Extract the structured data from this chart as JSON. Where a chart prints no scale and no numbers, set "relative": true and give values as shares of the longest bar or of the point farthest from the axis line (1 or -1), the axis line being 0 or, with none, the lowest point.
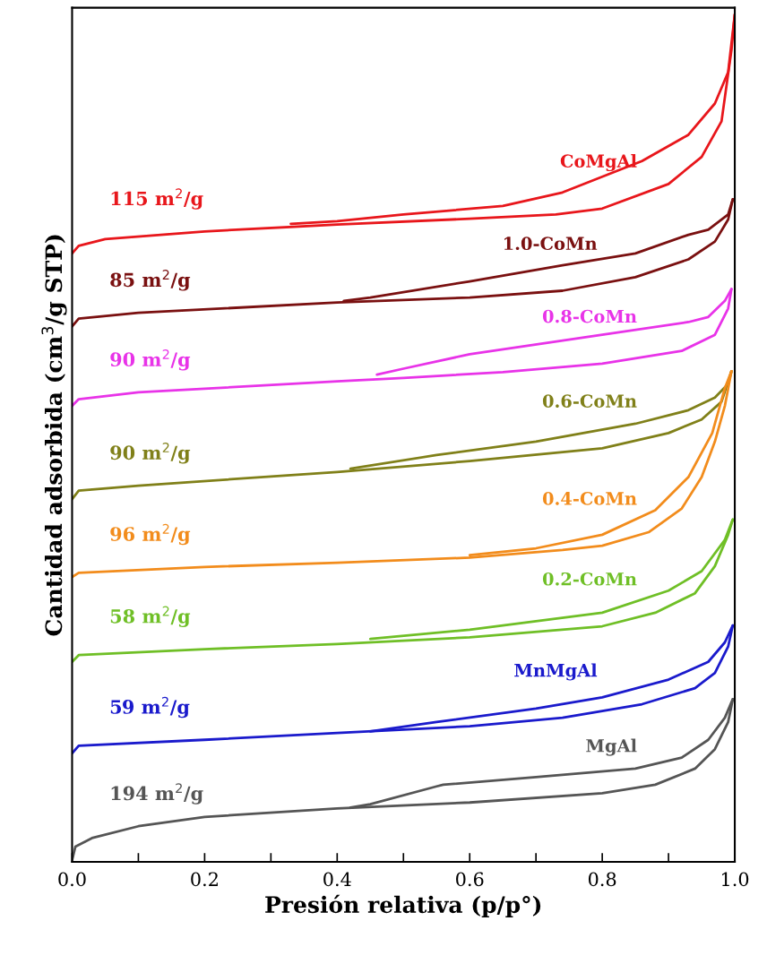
{
  "chart_data": {
    "type": "line",
    "relative": true,
    "xlabel": "Presión relativa (p/p°)",
    "ylabel": "Cantidad adsorbida (cm$^{3}$/g STP)",
    "xlim": [
      0,
      1
    ],
    "xticks": [
      {
        "value": 0,
        "label": "0.0"
      },
      {
        "value": 0.1,
        "label": null
      },
      {
        "value": 0.2,
        "label": "0.2"
      },
      {
        "value": 0.3,
        "label": null
      },
      {
        "value": 0.4,
        "label": "0.4"
      },
      {
        "value": 0.5,
        "label": null
      },
      {
        "value": 0.6,
        "label": "0.6"
      },
      {
        "value": 0.7,
        "label": null
      },
      {
        "value": 0.8,
        "label": "0.8"
      },
      {
        "value": 0.9,
        "label": null
      },
      {
        "value": 1,
        "label": "1.0"
      }
    ],
    "tick_labels": "x",
    "series": [
      {
        "name": "CoMgAl",
        "color": "#e8161b",
        "x": [
          0,
          0.01,
          0.05,
          0.2,
          0.4,
          0.6,
          0.73,
          0.8,
          0.9,
          0.95,
          0.98,
          0.995,
          1.0
        ],
        "values": [
          0.718,
          0.727,
          0.735,
          0.744,
          0.752,
          0.759,
          0.764,
          0.771,
          0.8,
          0.832,
          0.874,
          0.958,
          1.0
        ]
      },
      {
        "color": "#e8161b",
        "x": [
          1.0,
          0.99,
          0.97,
          0.93,
          0.86,
          0.74,
          0.65,
          0.5,
          0.4,
          0.33
        ],
        "values": [
          1.0,
          0.932,
          0.895,
          0.858,
          0.827,
          0.79,
          0.774,
          0.764,
          0.756,
          0.753
        ]
      },
      {
        "name": "1.0-CoMn",
        "color": "#7a1010",
        "x": [
          0,
          0.01,
          0.1,
          0.4,
          0.6,
          0.74,
          0.85,
          0.93,
          0.97,
          0.99,
          0.997
        ],
        "values": [
          0.632,
          0.641,
          0.648,
          0.66,
          0.666,
          0.674,
          0.69,
          0.711,
          0.732,
          0.758,
          0.782
        ]
      },
      {
        "color": "#7a1010",
        "x": [
          0.997,
          0.99,
          0.96,
          0.93,
          0.85,
          0.74,
          0.6,
          0.45,
          0.41
        ],
        "values": [
          0.782,
          0.764,
          0.746,
          0.74,
          0.718,
          0.704,
          0.685,
          0.666,
          0.662
        ]
      },
      {
        "name": "0.8-CoMn",
        "color": "#e833e8",
        "x": [
          0,
          0.01,
          0.1,
          0.4,
          0.5,
          0.65,
          0.8,
          0.92,
          0.97,
          0.99,
          0.995
        ],
        "values": [
          0.538,
          0.546,
          0.554,
          0.567,
          0.571,
          0.578,
          0.588,
          0.603,
          0.622,
          0.653,
          0.676
        ]
      },
      {
        "color": "#e833e8",
        "x": [
          0.995,
          0.985,
          0.96,
          0.93,
          0.8,
          0.6,
          0.5,
          0.46
        ],
        "values": [
          0.676,
          0.662,
          0.643,
          0.637,
          0.622,
          0.599,
          0.582,
          0.575
        ]
      },
      {
        "name": "0.6-CoMn",
        "color": "#808019",
        "x": [
          0,
          0.01,
          0.1,
          0.4,
          0.6,
          0.8,
          0.9,
          0.95,
          0.98,
          0.995
        ],
        "values": [
          0.428,
          0.438,
          0.444,
          0.46,
          0.473,
          0.488,
          0.506,
          0.522,
          0.543,
          0.579
        ]
      },
      {
        "color": "#808019",
        "x": [
          0.995,
          0.99,
          0.97,
          0.93,
          0.85,
          0.7,
          0.55,
          0.42
        ],
        "values": [
          0.579,
          0.564,
          0.548,
          0.533,
          0.517,
          0.496,
          0.48,
          0.464
        ]
      },
      {
        "name": "0.4-CoMn",
        "color": "#f28c1c",
        "x": [
          0,
          0.01,
          0.2,
          0.4,
          0.6,
          0.74,
          0.8,
          0.87,
          0.92,
          0.95,
          0.97,
          0.985,
          0.995
        ],
        "values": [
          0.336,
          0.341,
          0.348,
          0.353,
          0.359,
          0.368,
          0.373,
          0.389,
          0.417,
          0.454,
          0.496,
          0.538,
          0.579
        ]
      },
      {
        "color": "#f28c1c",
        "x": [
          0.995,
          0.985,
          0.966,
          0.93,
          0.88,
          0.8,
          0.7,
          0.6
        ],
        "values": [
          0.579,
          0.559,
          0.506,
          0.454,
          0.415,
          0.386,
          0.37,
          0.362
        ]
      },
      {
        "name": "0.2-CoMn",
        "color": "#6fbf26",
        "x": [
          0,
          0.01,
          0.2,
          0.4,
          0.6,
          0.8,
          0.88,
          0.94,
          0.97,
          0.99,
          0.997
        ],
        "values": [
          0.236,
          0.244,
          0.251,
          0.257,
          0.265,
          0.278,
          0.294,
          0.317,
          0.349,
          0.386,
          0.404
        ]
      },
      {
        "color": "#6fbf26",
        "x": [
          0.997,
          0.985,
          0.95,
          0.9,
          0.8,
          0.7,
          0.6,
          0.45
        ],
        "values": [
          0.404,
          0.38,
          0.343,
          0.32,
          0.294,
          0.284,
          0.274,
          0.263
        ]
      },
      {
        "name": "MnMgAl",
        "color": "#1a1acc",
        "x": [
          0,
          0.01,
          0.2,
          0.4,
          0.6,
          0.74,
          0.86,
          0.94,
          0.97,
          0.99,
          0.997
        ],
        "values": [
          0.128,
          0.137,
          0.144,
          0.152,
          0.16,
          0.17,
          0.186,
          0.205,
          0.223,
          0.254,
          0.279
        ]
      },
      {
        "color": "#1a1acc",
        "x": [
          0.997,
          0.985,
          0.96,
          0.9,
          0.8,
          0.7,
          0.55,
          0.45
        ],
        "values": [
          0.279,
          0.259,
          0.236,
          0.215,
          0.194,
          0.181,
          0.165,
          0.154
        ]
      },
      {
        "name": "MgAl",
        "color": "#555555",
        "x": [
          0,
          0.005,
          0.03,
          0.1,
          0.2,
          0.4,
          0.6,
          0.8,
          0.88,
          0.94,
          0.97,
          0.99,
          0.997
        ],
        "values": [
          0.002,
          0.018,
          0.028,
          0.042,
          0.053,
          0.063,
          0.07,
          0.081,
          0.091,
          0.11,
          0.133,
          0.165,
          0.192
        ]
      },
      {
        "color": "#555555",
        "x": [
          0.997,
          0.985,
          0.96,
          0.92,
          0.85,
          0.7,
          0.56,
          0.55,
          0.45,
          0.42
        ],
        "values": [
          0.192,
          0.17,
          0.144,
          0.123,
          0.11,
          0.1,
          0.091,
          0.089,
          0.068,
          0.064
        ]
      }
    ],
    "annotations": [
      "115 m$^{2}$/g",
      "85 m$^{2}$/g",
      "90 m$^{2}$/g",
      "90 m$^{2}$/g",
      "96 m$^{2}$/g",
      "58 m$^{2}$/g",
      "59 m$^{2}$/g",
      "194 m$^{2}$/g"
    ]
  }
}
